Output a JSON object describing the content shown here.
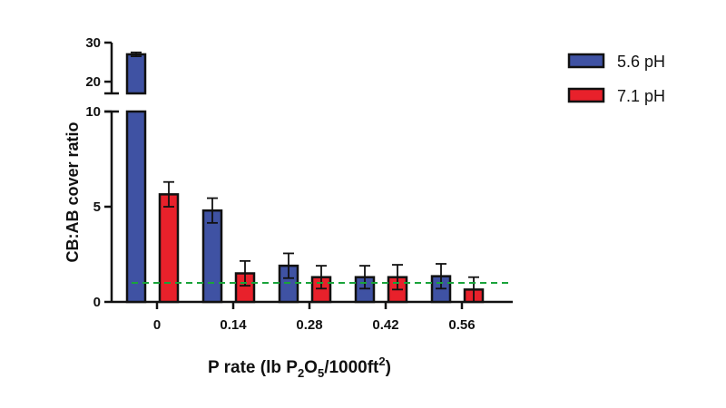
{
  "chart_data": {
    "type": "bar",
    "xlabel": {
      "prefix": "P rate (lb P",
      "sub1": "2",
      "mid": "O",
      "sub2": "5",
      "suffix": "/1000ft",
      "sup": "2",
      "close": ")"
    },
    "ylabel": "CB:AB cover ratio",
    "categories": [
      "0",
      "0.14",
      "0.28",
      "0.42",
      "0.56"
    ],
    "series": [
      {
        "name": "5.6 pH",
        "color": "#3f52a3",
        "values": [
          27.0,
          4.8,
          1.9,
          1.3,
          1.35
        ],
        "errors": [
          0.5,
          0.65,
          0.65,
          0.6,
          0.65
        ]
      },
      {
        "name": "7.1 pH",
        "color": "#e8212b",
        "values": [
          5.65,
          1.5,
          1.3,
          1.3,
          0.65
        ],
        "errors": [
          0.65,
          0.65,
          0.6,
          0.65,
          0.65
        ]
      }
    ],
    "reference_line": {
      "value": 1,
      "color": "#1aa33a",
      "style": "dashed"
    },
    "y_axis": {
      "lower_segment": {
        "range": [
          0,
          10
        ],
        "ticks": [
          "0",
          "5",
          "10"
        ]
      },
      "upper_segment": {
        "range": [
          17,
          30
        ],
        "ticks": [
          "20",
          "30"
        ]
      },
      "broken": true
    },
    "legend_position": "top-right",
    "grid": false
  }
}
